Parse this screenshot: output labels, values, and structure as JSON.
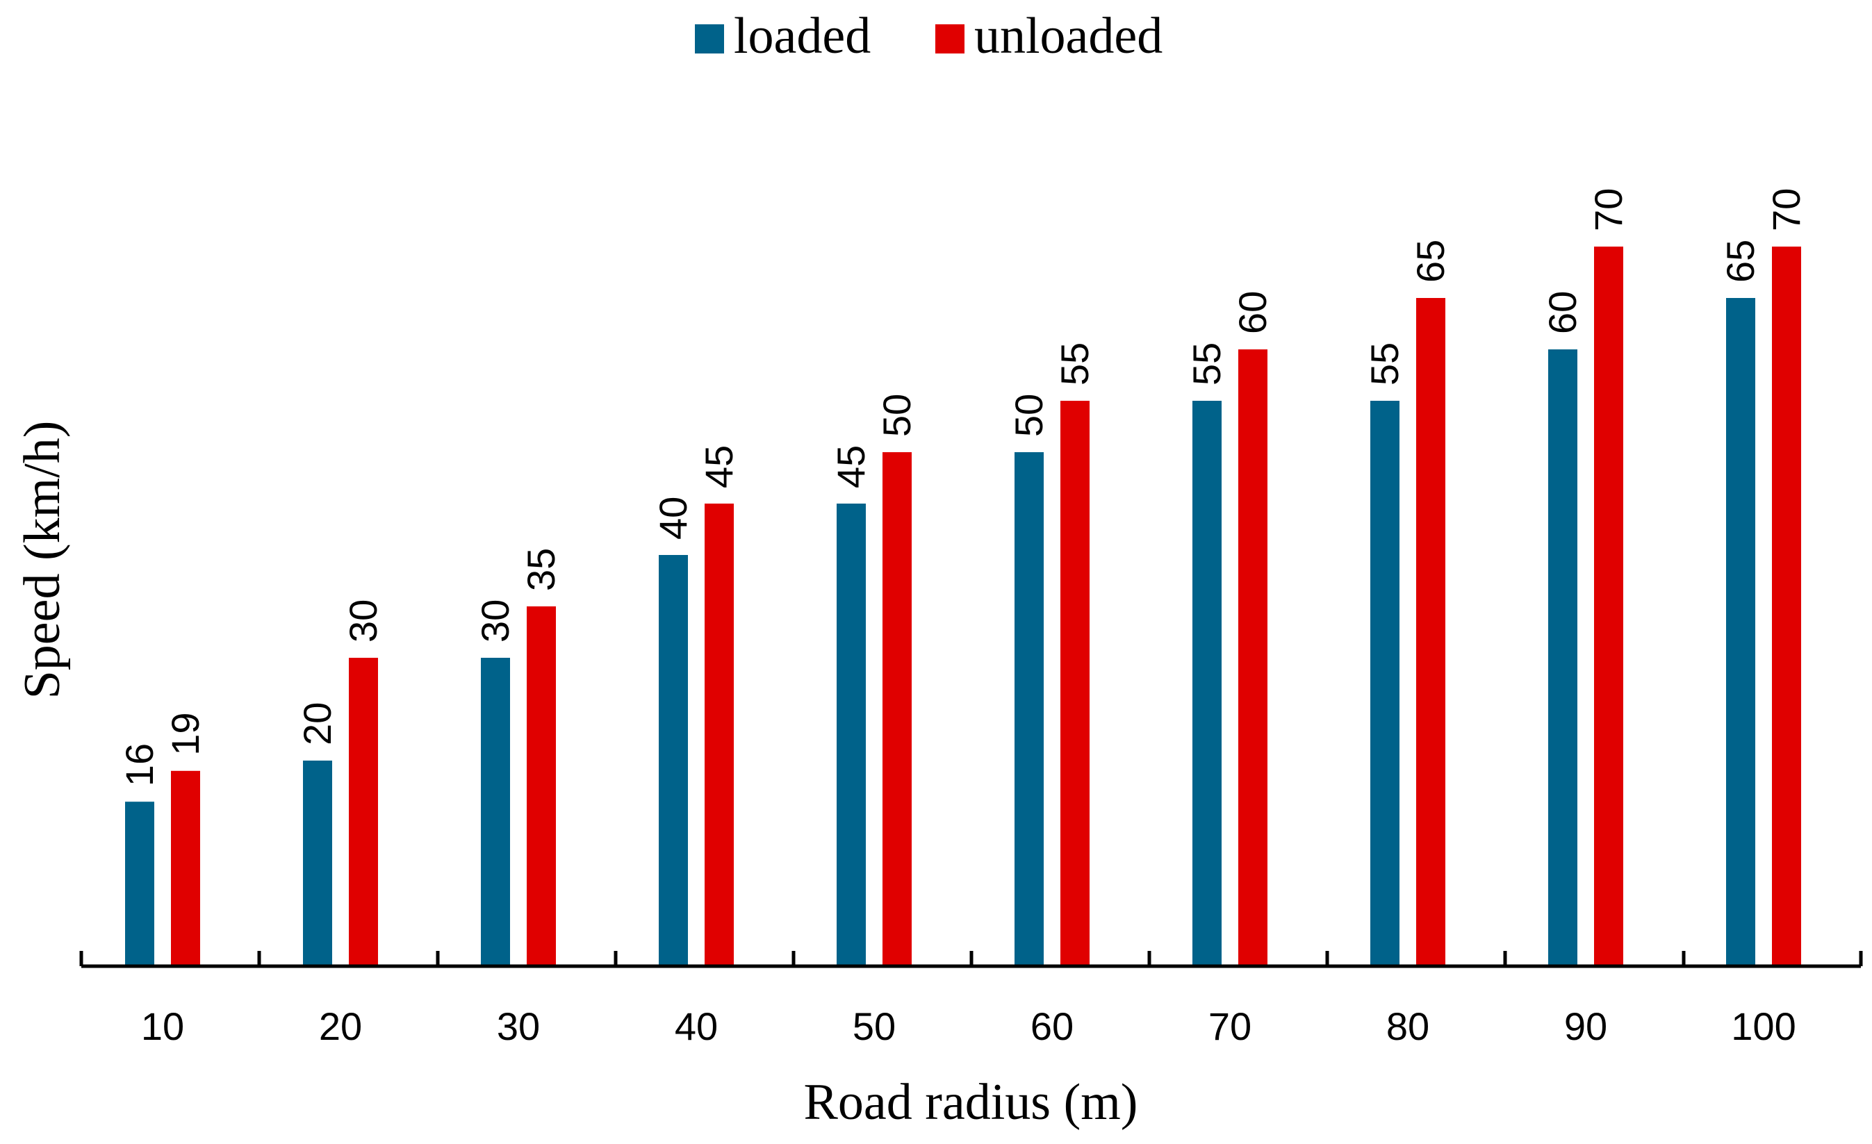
{
  "chart_data": {
    "type": "bar",
    "title": "",
    "xlabel": "Road radius (m)",
    "ylabel": "Speed (km/h)",
    "categories": [
      "10",
      "20",
      "30",
      "40",
      "50",
      "60",
      "70",
      "80",
      "90",
      "100"
    ],
    "series": [
      {
        "name": "loaded",
        "color": "#00628a",
        "values": [
          16,
          20,
          30,
          40,
          45,
          50,
          55,
          55,
          60,
          65
        ]
      },
      {
        "name": "unloaded",
        "color": "#e00000",
        "values": [
          19,
          30,
          35,
          45,
          50,
          55,
          60,
          65,
          70,
          70
        ]
      }
    ],
    "ylim": [
      0,
      95
    ],
    "grid": false,
    "legend": "top-center",
    "data_labels": true,
    "y_axis_visible": false
  }
}
